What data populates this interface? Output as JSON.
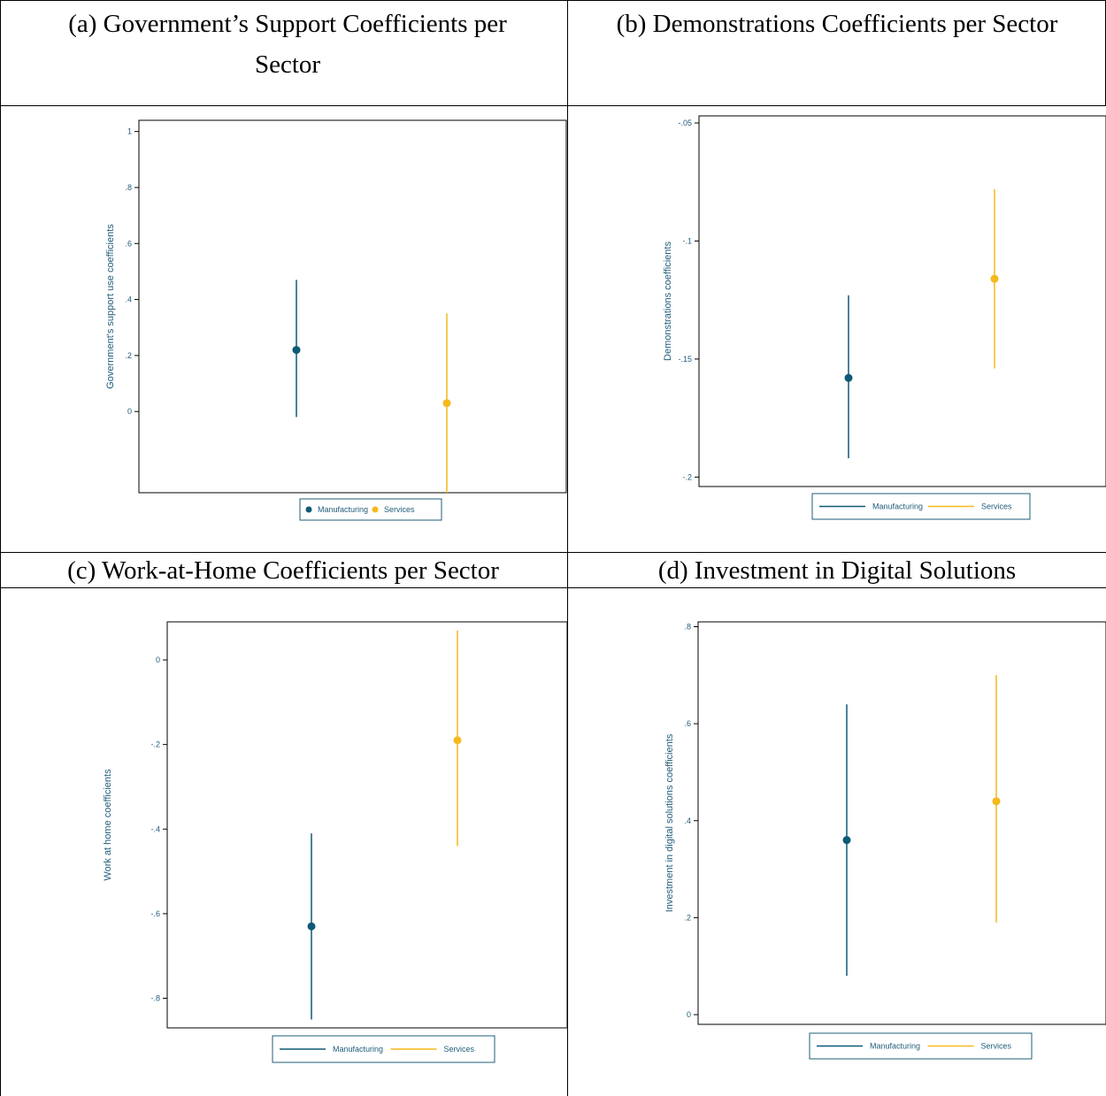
{
  "titles": {
    "a": "(a) Government’s Support Coefficients per Sector",
    "b": "(b) Demonstrations Coefficients per Sector",
    "c": "(c) Work-at-Home Coefficients per Sector",
    "d": "(d) Investment in Digital Solutions"
  },
  "colors": {
    "axis": "#1f5c7a",
    "manufacturing": "#0e5a77",
    "services": "#f5b91c"
  },
  "chart_data": [
    {
      "type": "scatter",
      "ylabel": "Government's support use coefficients",
      "ylim": [
        -0.29,
        1.04
      ],
      "yticks": [
        {
          "v": 0,
          "label": "0"
        },
        {
          "v": 0.2,
          "label": ".2"
        },
        {
          "v": 0.4,
          "label": ".4"
        },
        {
          "v": 0.6,
          "label": ".6"
        },
        {
          "v": 0.8,
          "label": ".8"
        },
        {
          "v": 1,
          "label": "1"
        }
      ],
      "legend_style": "marker",
      "series": [
        {
          "name": "Manufacturing",
          "estimate": 0.22,
          "ci": [
            -0.02,
            0.47
          ]
        },
        {
          "name": "Services",
          "estimate": 0.03,
          "ci": [
            -0.29,
            0.35
          ]
        }
      ]
    },
    {
      "type": "scatter",
      "ylabel": "Demonstrations coefficients",
      "ylim": [
        -0.204,
        -0.047
      ],
      "yticks": [
        {
          "v": -0.2,
          "label": "-.2"
        },
        {
          "v": -0.15,
          "label": "-.15"
        },
        {
          "v": -0.1,
          "label": "-.1"
        },
        {
          "v": -0.05,
          "label": "-.05"
        }
      ],
      "legend_style": "line",
      "series": [
        {
          "name": "Manufacturing",
          "estimate": -0.158,
          "ci": [
            -0.192,
            -0.123
          ]
        },
        {
          "name": "Services",
          "estimate": -0.116,
          "ci": [
            -0.154,
            -0.078
          ]
        }
      ]
    },
    {
      "type": "scatter",
      "ylabel": "Work at home coefficients",
      "ylim": [
        -0.87,
        0.09
      ],
      "yticks": [
        {
          "v": -0.8,
          "label": "-.8"
        },
        {
          "v": -0.6,
          "label": "-.6"
        },
        {
          "v": -0.4,
          "label": "-.4"
        },
        {
          "v": -0.2,
          "label": "-.2"
        },
        {
          "v": 0,
          "label": "0"
        }
      ],
      "legend_style": "line",
      "series": [
        {
          "name": "Manufacturing",
          "estimate": -0.63,
          "ci": [
            -0.85,
            -0.41
          ]
        },
        {
          "name": "Services",
          "estimate": -0.19,
          "ci": [
            -0.44,
            0.07
          ]
        }
      ]
    },
    {
      "type": "scatter",
      "ylabel": "Investment in digital solutions coefficients",
      "ylim": [
        -0.02,
        0.81
      ],
      "yticks": [
        {
          "v": 0,
          "label": "0"
        },
        {
          "v": 0.2,
          "label": ".2"
        },
        {
          "v": 0.4,
          "label": ".4"
        },
        {
          "v": 0.6,
          "label": ".6"
        },
        {
          "v": 0.8,
          "label": ".8"
        }
      ],
      "legend_style": "line",
      "series": [
        {
          "name": "Manufacturing",
          "estimate": 0.36,
          "ci": [
            0.08,
            0.64
          ]
        },
        {
          "name": "Services",
          "estimate": 0.44,
          "ci": [
            0.19,
            0.7
          ]
        }
      ]
    }
  ]
}
